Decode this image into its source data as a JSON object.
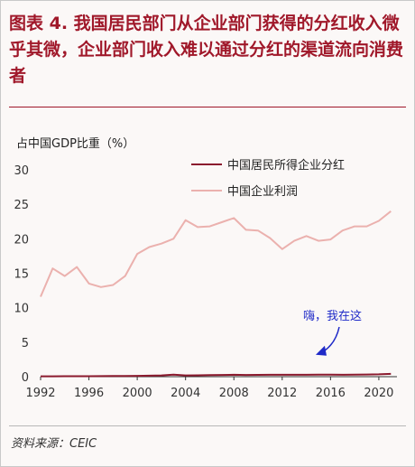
{
  "header": {
    "title": "图表 4.  我国居民部门从企业部门获得的分红收入微乎其微，企业部门收入难以通过分红的渠道流向消费者"
  },
  "footer": {
    "source": "资料来源：CEIC"
  },
  "colors": {
    "title": "#a0182a",
    "series_household": "#8b1a2e",
    "series_profit": "#ebb1ae",
    "annotation": "#1f2ac8"
  },
  "chart_data": {
    "type": "line",
    "ylabel": "占中国GDP比重（%）",
    "ylim": [
      0,
      30
    ],
    "yticks": [
      0,
      5,
      10,
      15,
      20,
      25,
      30
    ],
    "xlim": [
      1992,
      2021.5
    ],
    "xticks": [
      1992,
      1996,
      2000,
      2004,
      2008,
      2012,
      2016,
      2020
    ],
    "x": [
      1992,
      1993,
      1994,
      1995,
      1996,
      1997,
      1998,
      1999,
      2000,
      2001,
      2002,
      2003,
      2004,
      2005,
      2006,
      2007,
      2008,
      2009,
      2010,
      2011,
      2012,
      2013,
      2014,
      2015,
      2016,
      2017,
      2018,
      2019,
      2020,
      2021
    ],
    "legend": "top",
    "series": [
      {
        "name": "中国居民所得企业分红",
        "values": [
          0.05,
          0.05,
          0.06,
          0.07,
          0.07,
          0.08,
          0.09,
          0.1,
          0.12,
          0.14,
          0.18,
          0.3,
          0.18,
          0.2,
          0.22,
          0.25,
          0.27,
          0.25,
          0.26,
          0.27,
          0.28,
          0.27,
          0.28,
          0.3,
          0.3,
          0.28,
          0.3,
          0.32,
          0.34,
          0.4
        ]
      },
      {
        "name": "中国企业利润",
        "values": [
          11.6,
          15.7,
          14.6,
          15.9,
          13.5,
          13.0,
          13.3,
          14.6,
          17.8,
          18.8,
          19.3,
          20.0,
          22.7,
          21.7,
          21.8,
          22.4,
          23.0,
          21.3,
          21.2,
          20.1,
          18.5,
          19.7,
          20.4,
          19.7,
          19.9,
          21.2,
          21.8,
          21.8,
          22.6,
          24.0
        ]
      }
    ],
    "annotation": {
      "text": "嗨，我在这",
      "target_x": 2015,
      "target_y": 0.3
    }
  }
}
